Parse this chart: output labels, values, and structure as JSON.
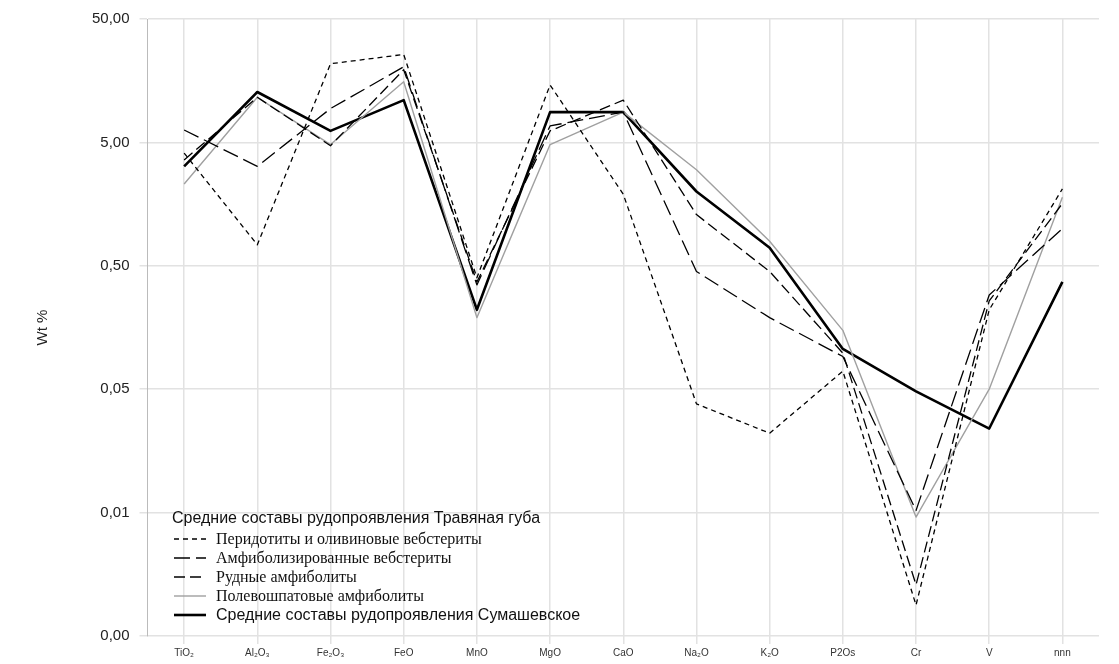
{
  "chart_data": {
    "type": "line",
    "ylabel": "Wt %",
    "log": "y",
    "grid": true,
    "marker": "none",
    "legend": "bottom left",
    "legend_title": "Средние составы рудопроявления Травяная губа",
    "categories": [
      "TiO₂",
      "Al₂O₃",
      "Fe₂O₃",
      "FeO",
      "MnO",
      "MgO",
      "CaO",
      "Na₂O",
      "K₂O",
      "P2Os",
      "Cr",
      "V",
      "nnn"
    ],
    "ylim": [
      0.0005,
      50
    ],
    "yticks": [
      {
        "value": 50,
        "label": "50,00"
      },
      {
        "value": 5,
        "label": "5,00"
      },
      {
        "value": 0.5,
        "label": "0,50"
      },
      {
        "value": 0.05,
        "label": "0,05"
      },
      {
        "value": 0.005,
        "label": "0,01"
      },
      {
        "value": 0.0005,
        "label": "0,00"
      }
    ],
    "series": [
      {
        "name": "Перидотиты и оливиновые вебстериты",
        "color": "#000000",
        "line_style": "dashed",
        "values": [
          4.1,
          0.74,
          21.7,
          25.8,
          0.4,
          14.6,
          1.9,
          0.038,
          0.022,
          0.07,
          0.00089,
          0.22,
          2.1
        ]
      },
      {
        "name": "Амфиболизированные вебстериты",
        "color": "#000000",
        "line_style": "dashed",
        "values": [
          6.3,
          3.2,
          9.4,
          20.5,
          0.35,
          6.8,
          8.8,
          0.45,
          0.19,
          0.092,
          0.0052,
          0.29,
          1.0
        ]
      },
      {
        "name": "Рудные амфиболиты",
        "color": "#000000",
        "line_style": "dashed",
        "values": [
          3.6,
          11.6,
          4.7,
          19.4,
          0.37,
          6.2,
          11.0,
          1.3,
          0.45,
          0.098,
          0.0013,
          0.26,
          1.6
        ]
      },
      {
        "name": "Полевошпатовые амфиболиты",
        "color": "#a0a0a0",
        "line_style": "solid",
        "values": [
          2.3,
          11.6,
          4.8,
          15.5,
          0.19,
          4.8,
          8.8,
          3.0,
          0.79,
          0.15,
          0.0046,
          0.05,
          1.8
        ]
      },
      {
        "name": "Средние составы рудопроявления Сумашевское",
        "color": "#000000",
        "line_style": "solid",
        "values": [
          3.2,
          12.8,
          6.2,
          11.0,
          0.22,
          8.8,
          8.8,
          2.0,
          0.7,
          0.106,
          0.048,
          0.024,
          0.37
        ]
      }
    ]
  }
}
